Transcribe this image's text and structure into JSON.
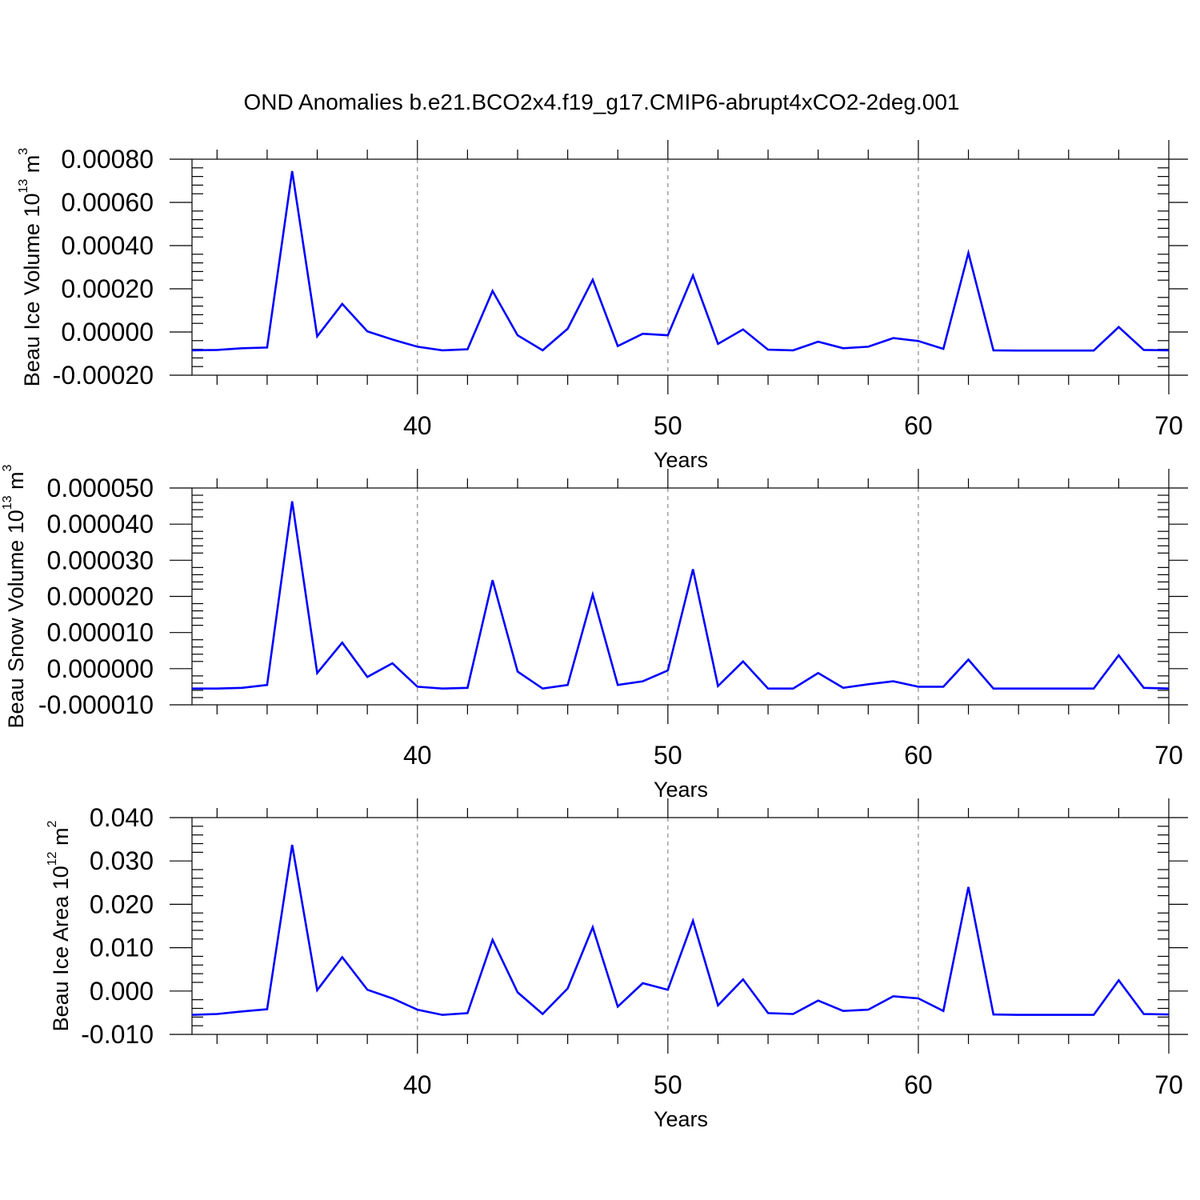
{
  "title": "OND Anomalies b.e21.BCO2x4.f19_g17.CMIP6-abrupt4xCO2-2deg.001",
  "colors": {
    "line": "#0000ff",
    "grid": "#888888",
    "frame": "#000000"
  },
  "chart_data": [
    {
      "type": "line",
      "ylabel_main": "Beau Ice Volume 10",
      "ylabel_exp": "13",
      "ylabel_unit": "m",
      "ylabel_unit_exp": "3",
      "xlabel": "Years",
      "xlim": [
        31,
        70
      ],
      "ylim": [
        -0.0002,
        0.0008
      ],
      "xticks": [
        40,
        50,
        60,
        70
      ],
      "xtick_labels": [
        "40",
        "50",
        "60",
        "70"
      ],
      "yticks": [
        -0.0002,
        0,
        0.0002,
        0.0004,
        0.0006,
        0.0008
      ],
      "ytick_labels": [
        "-0.00020",
        "0.00000",
        "0.00020",
        "0.00040",
        "0.00060",
        "0.00080"
      ],
      "grid": "vertical dashed at 40, 50, 60",
      "x": [
        31,
        32,
        33,
        34,
        35,
        36,
        37,
        38,
        39,
        40,
        41,
        42,
        43,
        44,
        45,
        46,
        47,
        48,
        49,
        50,
        51,
        52,
        53,
        54,
        55,
        56,
        57,
        58,
        59,
        60,
        61,
        62,
        63,
        64,
        65,
        66,
        67,
        68,
        69,
        70
      ],
      "values": [
        -8.5e-05,
        -8.3e-05,
        -7.5e-05,
        -7.2e-05,
        0.000745,
        -2e-05,
        0.00013,
        3e-06,
        -3.5e-05,
        -6.8e-05,
        -8.5e-05,
        -8e-05,
        0.00019,
        -1.5e-05,
        -8.5e-05,
        1.5e-05,
        0.000242,
        -6.5e-05,
        -8e-06,
        -1.5e-05,
        0.000262,
        -5.5e-05,
        1.2e-05,
        -8.2e-05,
        -8.5e-05,
        -4.5e-05,
        -7.5e-05,
        -6.8e-05,
        -2.8e-05,
        -4.2e-05,
        -7.8e-05,
        0.000366,
        -8.5e-05,
        -8.6e-05,
        -8.6e-05,
        -8.6e-05,
        -8.6e-05,
        2.3e-05,
        -8.3e-05,
        -8.5e-05
      ]
    },
    {
      "type": "line",
      "ylabel_main": "Beau Snow Volume 10",
      "ylabel_exp": "13",
      "ylabel_unit": "m",
      "ylabel_unit_exp": "3",
      "xlabel": "Years",
      "xlim": [
        31,
        70
      ],
      "ylim": [
        -1e-05,
        5e-05
      ],
      "xticks": [
        40,
        50,
        60,
        70
      ],
      "xtick_labels": [
        "40",
        "50",
        "60",
        "70"
      ],
      "yticks": [
        -1e-05,
        0,
        1e-05,
        2e-05,
        3e-05,
        4e-05,
        5e-05
      ],
      "ytick_labels": [
        "-0.000010",
        "0.000000",
        "0.000010",
        "0.000020",
        "0.000030",
        "0.000040",
        "0.000050"
      ],
      "grid": "vertical dashed at 40, 50, 60",
      "x": [
        31,
        32,
        33,
        34,
        35,
        36,
        37,
        38,
        39,
        40,
        41,
        42,
        43,
        44,
        45,
        46,
        47,
        48,
        49,
        50,
        51,
        52,
        53,
        54,
        55,
        56,
        57,
        58,
        59,
        60,
        61,
        62,
        63,
        64,
        65,
        66,
        67,
        68,
        69,
        70
      ],
      "values": [
        -5.5e-06,
        -5.5e-06,
        -5.3e-06,
        -4.5e-06,
        4.63e-05,
        -1.2e-06,
        7.2e-06,
        -2.3e-06,
        1.5e-06,
        -5e-06,
        -5.5e-06,
        -5.3e-06,
        2.45e-05,
        -8e-07,
        -5.5e-06,
        -4.5e-06,
        2.05e-05,
        -4.5e-06,
        -3.5e-06,
        -5e-07,
        2.75e-05,
        -4.8e-06,
        2e-06,
        -5.5e-06,
        -5.5e-06,
        -1.2e-06,
        -5.3e-06,
        -4.3e-06,
        -3.5e-06,
        -5e-06,
        -5e-06,
        2.5e-06,
        -5.5e-06,
        -5.5e-06,
        -5.5e-06,
        -5.5e-06,
        -5.5e-06,
        3.7e-06,
        -5.3e-06,
        -5.5e-06
      ]
    },
    {
      "type": "line",
      "ylabel_main": "Beau Ice Area 10",
      "ylabel_exp": "12",
      "ylabel_unit": "m",
      "ylabel_unit_exp": "2",
      "xlabel": "Years",
      "xlim": [
        31,
        70
      ],
      "ylim": [
        -0.01,
        0.04
      ],
      "xticks": [
        40,
        50,
        60,
        70
      ],
      "xtick_labels": [
        "40",
        "50",
        "60",
        "70"
      ],
      "yticks": [
        -0.01,
        0,
        0.01,
        0.02,
        0.03,
        0.04
      ],
      "ytick_labels": [
        "-0.010",
        "0.000",
        "0.010",
        "0.020",
        "0.030",
        "0.040"
      ],
      "grid": "vertical dashed at 40, 50, 60",
      "x": [
        31,
        32,
        33,
        34,
        35,
        36,
        37,
        38,
        39,
        40,
        41,
        42,
        43,
        44,
        45,
        46,
        47,
        48,
        49,
        50,
        51,
        52,
        53,
        54,
        55,
        56,
        57,
        58,
        59,
        60,
        61,
        62,
        63,
        64,
        65,
        66,
        67,
        68,
        69,
        70
      ],
      "values": [
        -0.0055,
        -0.0053,
        -0.0047,
        -0.0042,
        0.0337,
        0.0002,
        0.0078,
        0.0003,
        -0.0017,
        -0.0043,
        -0.0055,
        -0.0051,
        0.0118,
        -0.0003,
        -0.0053,
        0.0006,
        0.0147,
        -0.0036,
        0.0018,
        0.0003,
        0.0162,
        -0.0033,
        0.0027,
        -0.0051,
        -0.0053,
        -0.0022,
        -0.0046,
        -0.0043,
        -0.0012,
        -0.0017,
        -0.0046,
        0.024,
        -0.0054,
        -0.0055,
        -0.0055,
        -0.0055,
        -0.0055,
        0.0025,
        -0.0053,
        -0.0054
      ]
    }
  ]
}
